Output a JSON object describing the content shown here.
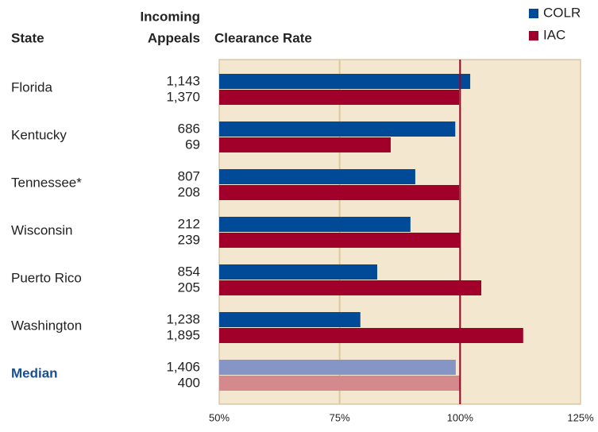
{
  "chart_data": {
    "type": "bar",
    "orientation": "horizontal",
    "column_headers": {
      "state": "State",
      "appeals": [
        "Incoming",
        "Appeals"
      ],
      "rate": "Clearance Rate"
    },
    "categories": [
      "Florida",
      "Kentucky",
      "Tennessee*",
      "Wisconsin",
      "Puerto Rico",
      "Washington",
      "Median"
    ],
    "highlight_category": "Median",
    "highlight_label_color": "#1a4f8f",
    "series": [
      {
        "name": "COLR",
        "color": "#004a97",
        "highlight_color": "#8596c6",
        "incoming_appeals": [
          "1,143",
          "686",
          "807",
          "212",
          "854",
          "1,238",
          "1,406"
        ],
        "values": [
          102.1,
          99.0,
          90.7,
          89.7,
          82.8,
          79.3,
          99.1
        ]
      },
      {
        "name": "IAC",
        "color": "#a0002a",
        "highlight_color": "#d48a8c",
        "incoming_appeals": [
          "1,370",
          "69",
          "208",
          "239",
          "205",
          "1,895",
          "400"
        ],
        "values": [
          99.8,
          85.6,
          99.8,
          100.1,
          104.4,
          113.1,
          100.1
        ]
      }
    ],
    "xlim": [
      50,
      125
    ],
    "xticks": [
      {
        "value": 50,
        "label": "50%"
      },
      {
        "value": 75,
        "label": "75%"
      },
      {
        "value": 100,
        "label": "100%"
      },
      {
        "value": 125,
        "label": "125%"
      }
    ],
    "grid": true,
    "grid_color": "#dcc89a",
    "background_color": "#f3e7cf",
    "reference_line": 100,
    "reference_line_color": "#a0002a",
    "legend": "top-right"
  }
}
